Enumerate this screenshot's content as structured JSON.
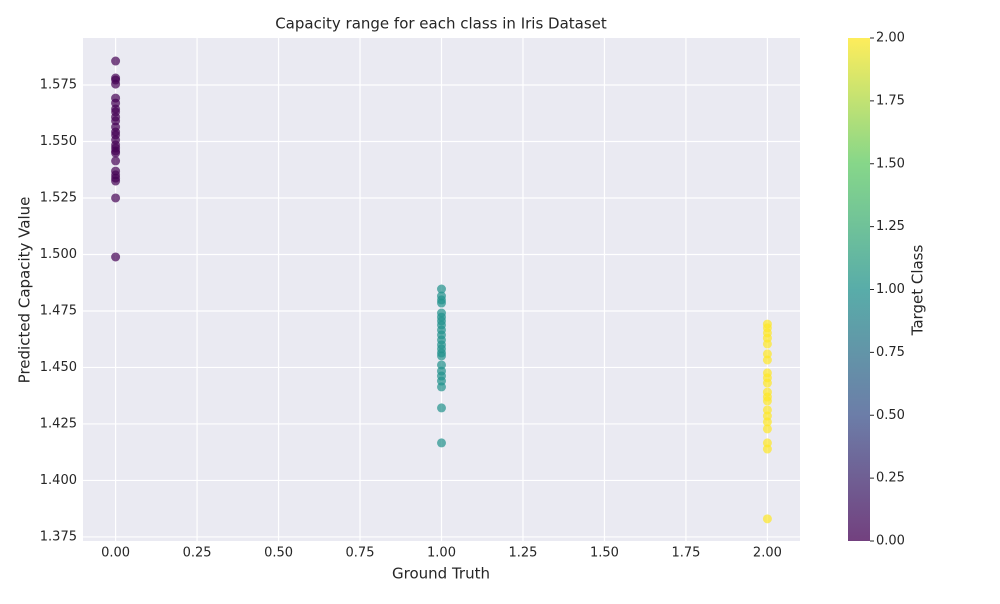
{
  "chart_data": {
    "type": "scatter",
    "title": "Capacity range for each class in Iris Dataset",
    "xlabel": "Ground Truth",
    "ylabel": "Predicted Capacity Value",
    "xlim": [
      -0.1,
      2.1
    ],
    "xticks": [
      {
        "value": 0,
        "label": "0.00"
      },
      {
        "value": 0.25,
        "label": "0.25"
      },
      {
        "value": 0.5,
        "label": "0.50"
      },
      {
        "value": 0.75,
        "label": "0.75"
      },
      {
        "value": 1,
        "label": "1.00"
      },
      {
        "value": 1.25,
        "label": "1.25"
      },
      {
        "value": 1.5,
        "label": "1.50"
      },
      {
        "value": 1.75,
        "label": "1.75"
      },
      {
        "value": 2,
        "label": "2.00"
      }
    ],
    "ylim": [
      1.3732,
      1.5958
    ],
    "yticks": [
      1.375,
      {
        "value": 1.4,
        "label": "1.400"
      },
      1.425,
      {
        "value": 1.45,
        "label": "1.450"
      },
      1.475,
      {
        "value": 1.5,
        "label": "1.500"
      },
      1.525,
      {
        "value": 1.55,
        "label": "1.550"
      },
      1.575
    ],
    "grid": true,
    "series": [
      {
        "color": "#440154",
        "x": [
          0,
          0,
          0,
          0,
          0,
          0,
          0,
          0,
          0,
          0,
          0,
          0,
          0,
          0,
          0,
          0,
          0,
          0,
          0,
          0,
          0,
          0,
          0,
          0,
          0
        ],
        "values": [
          1.5856,
          1.5781,
          1.5772,
          1.5754,
          1.5692,
          1.567,
          1.5644,
          1.5631,
          1.5608,
          1.5591,
          1.5564,
          1.5542,
          1.5529,
          1.5507,
          1.5485,
          1.5471,
          1.5458,
          1.5449,
          1.5414,
          1.5369,
          1.5352,
          1.5338,
          1.5325,
          1.525,
          1.4989
        ]
      },
      {
        "color": "#21918c",
        "x": [
          1,
          1,
          1,
          1,
          1,
          1,
          1,
          1,
          1,
          1,
          1,
          1,
          1,
          1,
          1,
          1,
          1,
          1,
          1,
          1,
          1,
          1
        ],
        "values": [
          1.4847,
          1.4816,
          1.4799,
          1.4785,
          1.4741,
          1.4723,
          1.4706,
          1.4688,
          1.4666,
          1.4644,
          1.4622,
          1.46,
          1.4582,
          1.4564,
          1.4551,
          1.4511,
          1.4484,
          1.4462,
          1.444,
          1.4414,
          1.4321,
          1.4166
        ]
      },
      {
        "color": "#fde725",
        "x": [
          2,
          2,
          2,
          2,
          2,
          2,
          2,
          2,
          2,
          2,
          2,
          2,
          2,
          2,
          2,
          2,
          2,
          2,
          2,
          2
        ],
        "values": [
          1.4692,
          1.4675,
          1.4653,
          1.463,
          1.4604,
          1.456,
          1.4533,
          1.4476,
          1.4454,
          1.4431,
          1.4391,
          1.4369,
          1.4352,
          1.4312,
          1.4285,
          1.4259,
          1.4228,
          1.4166,
          1.4139,
          1.383
        ]
      }
    ],
    "colorbar": {
      "label": "Target Class",
      "lim": [
        0,
        2
      ],
      "colors": [
        "#440154",
        "#3b528b",
        "#21918c",
        "#5ec962",
        "#fde725"
      ],
      "ticks": [
        {
          "value": 0,
          "label": "0.00"
        },
        {
          "value": 0.25,
          "label": "0.25"
        },
        {
          "value": 0.5,
          "label": "0.50"
        },
        {
          "value": 0.75,
          "label": "0.75"
        },
        {
          "value": 1,
          "label": "1.00"
        },
        {
          "value": 1.25,
          "label": "1.25"
        },
        {
          "value": 1.5,
          "label": "1.50"
        },
        {
          "value": 1.75,
          "label": "1.75"
        },
        {
          "value": 2,
          "label": "2.00"
        }
      ]
    }
  }
}
